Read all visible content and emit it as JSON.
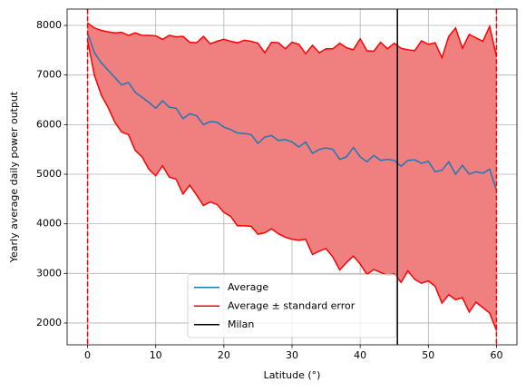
{
  "chart_data": {
    "type": "line",
    "xlabel": "Latitude (°)",
    "ylabel": "Yearly average daily power output",
    "x": [
      0,
      1,
      2,
      3,
      4,
      5,
      6,
      7,
      8,
      9,
      10,
      11,
      12,
      13,
      14,
      15,
      16,
      17,
      18,
      19,
      20,
      21,
      22,
      23,
      24,
      25,
      26,
      27,
      28,
      29,
      30,
      31,
      32,
      33,
      34,
      35,
      36,
      37,
      38,
      39,
      40,
      41,
      42,
      43,
      44,
      45,
      46,
      47,
      48,
      49,
      50,
      51,
      52,
      53,
      54,
      55,
      56,
      57,
      58,
      59,
      60
    ],
    "series": [
      {
        "name": "Average",
        "color": "#1f77b4",
        "values": [
          7850,
          7450,
          7250,
          7100,
          6950,
          6800,
          6850,
          6650,
          6550,
          6450,
          6330,
          6480,
          6350,
          6330,
          6120,
          6220,
          6180,
          6000,
          6060,
          6050,
          5950,
          5900,
          5830,
          5820,
          5800,
          5620,
          5750,
          5780,
          5680,
          5700,
          5650,
          5550,
          5650,
          5420,
          5500,
          5530,
          5500,
          5300,
          5350,
          5540,
          5350,
          5250,
          5380,
          5280,
          5300,
          5280,
          5160,
          5280,
          5290,
          5220,
          5260,
          5050,
          5080,
          5250,
          5000,
          5180,
          5000,
          5050,
          5020,
          5100,
          4680
        ]
      },
      {
        "name": "Average ± standard error",
        "color": "#ff0000",
        "fill_color": "#f08080",
        "upper": [
          8050,
          7950,
          7900,
          7870,
          7850,
          7860,
          7800,
          7850,
          7800,
          7800,
          7790,
          7720,
          7800,
          7770,
          7780,
          7660,
          7650,
          7780,
          7630,
          7680,
          7720,
          7680,
          7650,
          7700,
          7680,
          7640,
          7450,
          7660,
          7650,
          7530,
          7660,
          7620,
          7430,
          7600,
          7450,
          7530,
          7530,
          7640,
          7550,
          7510,
          7730,
          7490,
          7480,
          7660,
          7530,
          7640,
          7540,
          7510,
          7490,
          7690,
          7620,
          7650,
          7350,
          7780,
          7950,
          7540,
          7820,
          7750,
          7680,
          7980,
          7380
        ],
        "lower": [
          7700,
          7000,
          6600,
          6350,
          6050,
          5850,
          5800,
          5480,
          5350,
          5100,
          4970,
          5170,
          4940,
          4900,
          4600,
          4780,
          4580,
          4370,
          4440,
          4390,
          4230,
          4150,
          3960,
          3960,
          3950,
          3790,
          3820,
          3900,
          3800,
          3730,
          3690,
          3670,
          3690,
          3380,
          3450,
          3500,
          3330,
          3070,
          3220,
          3350,
          3190,
          2980,
          3080,
          3020,
          2960,
          2990,
          2820,
          3050,
          2880,
          2800,
          2850,
          2740,
          2400,
          2570,
          2470,
          2510,
          2220,
          2420,
          2310,
          2200,
          1850
        ]
      },
      {
        "name": "Milan",
        "color": "#000000",
        "vline": 45.46
      }
    ],
    "reference_lines": [
      {
        "x": 0,
        "color": "#ff0000",
        "dashed": true
      },
      {
        "x": 60,
        "color": "#ff0000",
        "dashed": true
      }
    ],
    "xlim": [
      -3,
      63
    ],
    "ylim": [
      1560,
      8330
    ],
    "xticks": [
      0,
      10,
      20,
      30,
      40,
      50,
      60
    ],
    "yticks": [
      2000,
      3000,
      4000,
      5000,
      6000,
      7000,
      8000
    ],
    "grid": true,
    "legend": "lower center"
  }
}
